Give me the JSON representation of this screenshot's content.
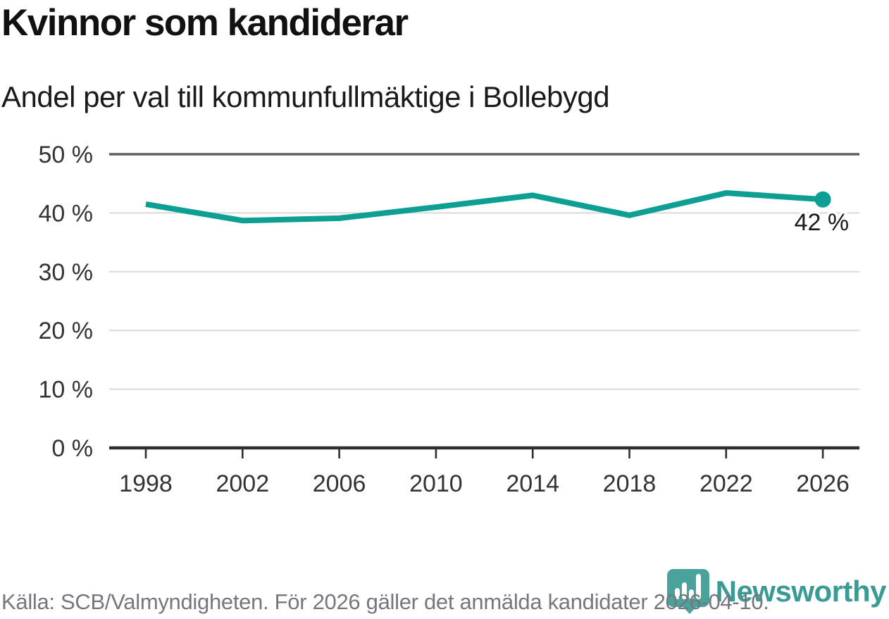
{
  "header": {
    "title": "Kvinnor som kandiderar",
    "subtitle": "Andel per val till kommunfullmäktige i Bollebygd"
  },
  "chart_data": {
    "type": "line",
    "title": "Kvinnor som kandiderar",
    "subtitle": "Andel per val till kommunfullmäktige i Bollebygd",
    "categories": [
      "1998",
      "2002",
      "2006",
      "2010",
      "2014",
      "2018",
      "2022",
      "2026"
    ],
    "values": [
      41.5,
      38.7,
      39.1,
      41.0,
      43.0,
      39.6,
      43.4,
      42.3
    ],
    "end_point_label": "42 %",
    "xlabel": "",
    "ylabel": "",
    "ylim": [
      0,
      50
    ],
    "yticks": [
      0,
      10,
      20,
      30,
      40,
      50
    ],
    "ytick_labels": [
      "0 %",
      "10 %",
      "20 %",
      "30 %",
      "40 %",
      "50 %"
    ],
    "grid": "horizontal",
    "legend": "none",
    "marker_on_last_point": true,
    "colors": {
      "line": "#0d9e94",
      "grid_light": "#d9d9d9",
      "grid_top": "#5f5f63",
      "axis": "#2e2e2e",
      "tick_label": "#333333",
      "annotation_text": "#1a1a1a"
    }
  },
  "footer": {
    "source_text": "Källa: SCB/Valmyndigheten. För 2026 gäller det anmälda kandidater 2026-04-10."
  },
  "branding": {
    "wordmark": "Newsworthy",
    "logo_icon": "newsworthy-pin-barchart-icon",
    "icon_color": "#49a29b",
    "wordmark_color": "#399b93"
  }
}
